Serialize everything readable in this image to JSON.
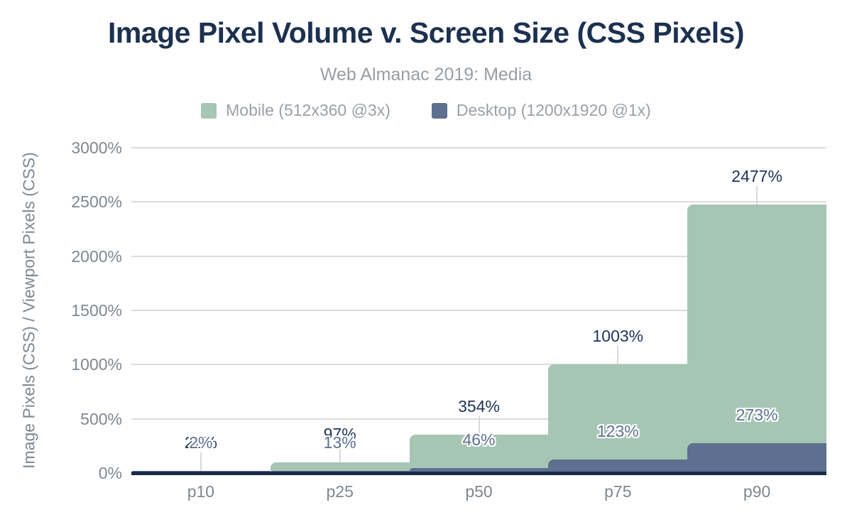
{
  "figure": {
    "title": "Image Pixel Volume v. Screen Size (CSS Pixels)",
    "subtitle": "Web Almanac 2019: Media"
  },
  "legend": [
    {
      "label": "Mobile (512x360 @3x)",
      "color": "#a6c6b3"
    },
    {
      "label": "Desktop (1200x1920 @1x)",
      "color": "#5e7090"
    }
  ],
  "chart_data": {
    "type": "area",
    "variant": "stepped",
    "title": "Image Pixel Volume v. Screen Size (CSS Pixels)",
    "subtitle": "Web Almanac 2019: Media",
    "categories": [
      "p10",
      "p25",
      "p50",
      "p75",
      "p90"
    ],
    "series": [
      {
        "name": "Mobile (512x360 @3x)",
        "color": "#a6c6b3",
        "values": [
          22,
          97,
          354,
          1003,
          2477
        ],
        "data_labels": [
          "22%",
          "97%",
          "354%",
          "1003%",
          "2477%"
        ],
        "label_style": "plain-navy"
      },
      {
        "name": "Desktop (1200x1920 @1x)",
        "color": "#5e7090",
        "values": [
          2,
          13,
          46,
          123,
          273
        ],
        "data_labels": [
          "2%",
          "13%",
          "46%",
          "123%",
          "273%"
        ],
        "label_style": "white-outlined-slate"
      }
    ],
    "xlabel": "",
    "ylabel": "Image Pixels (CSS) / Viewport Pixels (CSS)",
    "ylim": [
      0,
      3000
    ],
    "yticks": [
      {
        "value": 0,
        "label": "0%"
      },
      {
        "value": 500,
        "label": "500%"
      },
      {
        "value": 1000,
        "label": "1000%"
      },
      {
        "value": 1500,
        "label": "1500%"
      },
      {
        "value": 2000,
        "label": "2000%"
      },
      {
        "value": 2500,
        "label": "2500%"
      },
      {
        "value": 3000,
        "label": "3000%"
      }
    ],
    "grid": true,
    "legend_position": "top"
  },
  "colors": {
    "background": "#ffffff",
    "title_text": "#1c3150",
    "subtitle_text": "#979ea4",
    "legend_text": "#9aa1a7",
    "axis_text": "#7e878f",
    "gridline": "#dcdcdc",
    "leader_line": "#d9d9d9",
    "axis_line": "#1a2a47",
    "mobile_fill": "#a6c6b3",
    "desktop_fill": "#5e7090",
    "mobile_label_text": "#1d3355",
    "desktop_label_text": "#5e7090"
  }
}
